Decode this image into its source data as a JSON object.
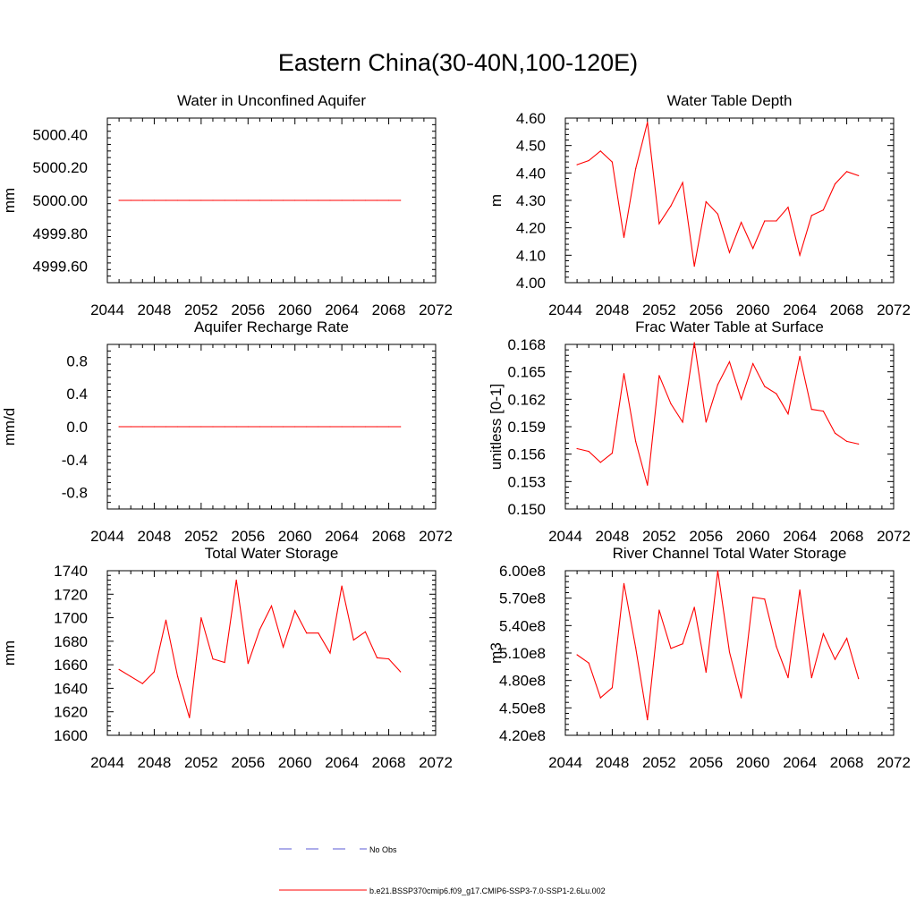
{
  "title": "Eastern China(30-40N,100-120E)",
  "legend": {
    "items": [
      {
        "label": "No Obs",
        "color": "#5b5bd6",
        "dash": true
      },
      {
        "label": "b.e21.BSSP370cmip6.f09_g17.CMIP6-SSP3-7.0-SSP1-2.6Lu.002",
        "color": "#ff0000",
        "dash": false
      }
    ],
    "placement": "bottom-center"
  },
  "chart_data": [
    {
      "type": "line",
      "title": "Water in Unconfined Aquifer",
      "ylabel": "mm",
      "xlim": [
        2044,
        2072
      ],
      "ylim": [
        4999.5,
        5000.5
      ],
      "xticks": [
        "2044",
        "2048",
        "2052",
        "2056",
        "2060",
        "2064",
        "2068",
        "2072"
      ],
      "yticks": [
        4999.6,
        4999.8,
        5000.0,
        5000.2,
        5000.4
      ],
      "ytick_labels": [
        "4999.60",
        "4999.80",
        "5000.00",
        "5000.20",
        "5000.40"
      ],
      "x": [
        2045,
        2046,
        2047,
        2048,
        2049,
        2050,
        2051,
        2052,
        2053,
        2054,
        2055,
        2056,
        2057,
        2058,
        2059,
        2060,
        2061,
        2062,
        2063,
        2064,
        2065,
        2066,
        2067,
        2068,
        2069
      ],
      "series": [
        {
          "color": "#ff0000",
          "values": [
            5000,
            5000,
            5000,
            5000,
            5000,
            5000,
            5000,
            5000,
            5000,
            5000,
            5000,
            5000,
            5000,
            5000,
            5000,
            5000,
            5000,
            5000,
            5000,
            5000,
            5000,
            5000,
            5000,
            5000,
            5000
          ]
        }
      ]
    },
    {
      "type": "line",
      "title": "Water Table Depth",
      "ylabel": "m",
      "xlim": [
        2044,
        2072
      ],
      "ylim": [
        4.0,
        4.6
      ],
      "xticks": [
        "2044",
        "2048",
        "2052",
        "2056",
        "2060",
        "2064",
        "2068",
        "2072"
      ],
      "yticks": [
        4.0,
        4.1,
        4.2,
        4.3,
        4.4,
        4.5,
        4.6
      ],
      "ytick_labels": [
        "4.00",
        "4.10",
        "4.20",
        "4.30",
        "4.40",
        "4.50",
        "4.60"
      ],
      "x": [
        2045,
        2046,
        2047,
        2048,
        2049,
        2050,
        2051,
        2052,
        2053,
        2054,
        2055,
        2056,
        2057,
        2058,
        2059,
        2060,
        2061,
        2062,
        2063,
        2064,
        2065,
        2066,
        2067,
        2068,
        2069
      ],
      "series": [
        {
          "color": "#ff0000",
          "values": [
            4.43,
            4.445,
            4.48,
            4.44,
            4.165,
            4.415,
            4.585,
            4.215,
            4.28,
            4.365,
            4.06,
            4.295,
            4.25,
            4.11,
            4.22,
            4.125,
            4.225,
            4.225,
            4.275,
            4.1,
            4.245,
            4.265,
            4.36,
            4.405,
            4.39
          ]
        }
      ]
    },
    {
      "type": "line",
      "title": "Aquifer Recharge Rate",
      "ylabel": "mm/d",
      "xlim": [
        2044,
        2072
      ],
      "ylim": [
        -1.0,
        1.0
      ],
      "xticks": [
        "2044",
        "2048",
        "2052",
        "2056",
        "2060",
        "2064",
        "2068",
        "2072"
      ],
      "yticks": [
        -0.8,
        -0.4,
        0.0,
        0.4,
        0.8
      ],
      "ytick_labels": [
        "-0.8",
        "-0.4",
        "0.0",
        "0.4",
        "0.8"
      ],
      "x": [
        2045,
        2046,
        2047,
        2048,
        2049,
        2050,
        2051,
        2052,
        2053,
        2054,
        2055,
        2056,
        2057,
        2058,
        2059,
        2060,
        2061,
        2062,
        2063,
        2064,
        2065,
        2066,
        2067,
        2068,
        2069
      ],
      "series": [
        {
          "color": "#ff0000",
          "values": [
            0,
            0,
            0,
            0,
            0,
            0,
            0,
            0,
            0,
            0,
            0,
            0,
            0,
            0,
            0,
            0,
            0,
            0,
            0,
            0,
            0,
            0,
            0,
            0,
            0
          ]
        }
      ]
    },
    {
      "type": "line",
      "title": "Frac Water Table at Surface",
      "ylabel": "unitless [0-1]",
      "xlim": [
        2044,
        2072
      ],
      "ylim": [
        0.15,
        0.168
      ],
      "xticks": [
        "2044",
        "2048",
        "2052",
        "2056",
        "2060",
        "2064",
        "2068",
        "2072"
      ],
      "yticks": [
        0.15,
        0.153,
        0.156,
        0.159,
        0.162,
        0.165,
        0.168
      ],
      "ytick_labels": [
        "0.150",
        "0.153",
        "0.156",
        "0.159",
        "0.162",
        "0.165",
        "0.168"
      ],
      "x": [
        2045,
        2046,
        2047,
        2048,
        2049,
        2050,
        2051,
        2052,
        2053,
        2054,
        2055,
        2056,
        2057,
        2058,
        2059,
        2060,
        2061,
        2062,
        2063,
        2064,
        2065,
        2066,
        2067,
        2068,
        2069
      ],
      "series": [
        {
          "color": "#ff0000",
          "values": [
            0.1566,
            0.1563,
            0.1551,
            0.1561,
            0.1648,
            0.1574,
            0.1526,
            0.1646,
            0.1615,
            0.1595,
            0.1682,
            0.1595,
            0.1636,
            0.1661,
            0.162,
            0.1659,
            0.1634,
            0.1626,
            0.1604,
            0.1667,
            0.1609,
            0.1607,
            0.1583,
            0.1574,
            0.1571
          ]
        }
      ]
    },
    {
      "type": "line",
      "title": "Total Water Storage",
      "ylabel": "mm",
      "xlim": [
        2044,
        2072
      ],
      "ylim": [
        1600,
        1740
      ],
      "xticks": [
        "2044",
        "2048",
        "2052",
        "2056",
        "2060",
        "2064",
        "2068",
        "2072"
      ],
      "yticks": [
        1600,
        1620,
        1640,
        1660,
        1680,
        1700,
        1720,
        1740
      ],
      "ytick_labels": [
        "1600",
        "1620",
        "1640",
        "1660",
        "1680",
        "1700",
        "1720",
        "1740"
      ],
      "x": [
        2045,
        2046,
        2047,
        2048,
        2049,
        2050,
        2051,
        2052,
        2053,
        2054,
        2055,
        2056,
        2057,
        2058,
        2059,
        2060,
        2061,
        2062,
        2063,
        2064,
        2065,
        2066,
        2067,
        2068,
        2069
      ],
      "series": [
        {
          "color": "#ff0000",
          "values": [
            1656,
            1650,
            1644,
            1654,
            1698,
            1650,
            1615,
            1700,
            1665,
            1662,
            1732,
            1661,
            1690,
            1710,
            1675,
            1706,
            1687,
            1687,
            1670,
            1727,
            1681,
            1688,
            1666,
            1665,
            1654
          ]
        }
      ]
    },
    {
      "type": "line",
      "title": "River Channel Total Water Storage",
      "ylabel": "m3",
      "xlim": [
        2044,
        2072
      ],
      "ylim": [
        420000000,
        600000000
      ],
      "xticks": [
        "2044",
        "2048",
        "2052",
        "2056",
        "2060",
        "2064",
        "2068",
        "2072"
      ],
      "yticks": [
        420000000,
        450000000,
        480000000,
        510000000,
        540000000,
        570000000,
        600000000
      ],
      "ytick_labels": [
        "4.20e8",
        "4.50e8",
        "4.80e8",
        "5.10e8",
        "5.40e8",
        "5.70e8",
        "6.00e8"
      ],
      "x": [
        2045,
        2046,
        2047,
        2048,
        2049,
        2050,
        2051,
        2052,
        2053,
        2054,
        2055,
        2056,
        2057,
        2058,
        2059,
        2060,
        2061,
        2062,
        2063,
        2064,
        2065,
        2066,
        2067,
        2068,
        2069
      ],
      "series": [
        {
          "color": "#ff0000",
          "values": [
            508000000,
            499000000,
            461000000,
            472000000,
            586000000,
            516000000,
            437000000,
            557000000,
            515000000,
            520000000,
            560000000,
            489000000,
            600000000,
            511000000,
            461000000,
            571000000,
            569000000,
            517000000,
            483000000,
            579000000,
            483000000,
            531000000,
            503000000,
            526000000,
            482000000
          ]
        }
      ]
    }
  ]
}
